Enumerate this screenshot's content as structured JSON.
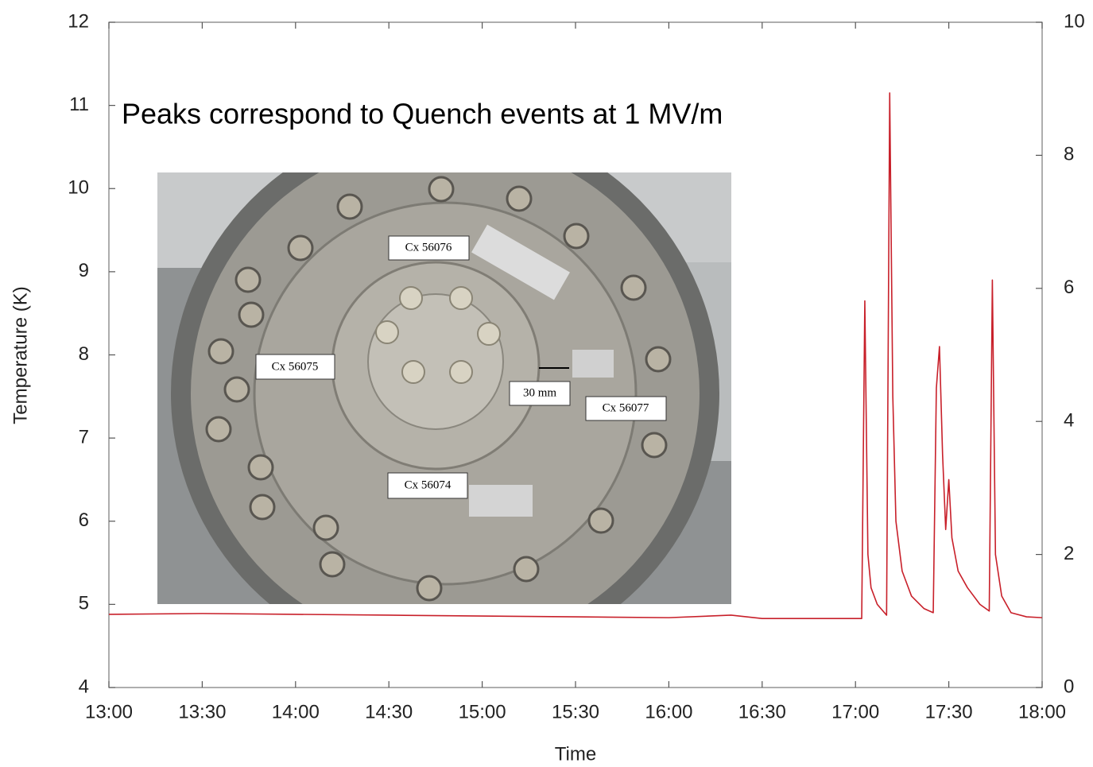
{
  "chart_data": {
    "type": "line",
    "title": "Peaks correspond to Quench events at 1 MV/m",
    "x_label": "Time",
    "y_label": "Temperature (K)",
    "annotations": [
      "Cx 56076",
      "Cx 56075",
      "30 mm",
      "Cx 56077",
      "Cx 56074"
    ],
    "x": [
      "13:00",
      "13:30",
      "14:00",
      "14:30",
      "15:00",
      "15:30",
      "16:00",
      "16:20",
      "16:30",
      "17:02",
      "17:03",
      "17:04",
      "17:05",
      "17:07",
      "17:10",
      "17:11",
      "17:12",
      "17:13",
      "17:15",
      "17:18",
      "17:22",
      "17:25",
      "17:26",
      "17:27",
      "17:28",
      "17:29",
      "17:30",
      "17:31",
      "17:33",
      "17:36",
      "17:40",
      "17:43",
      "17:44",
      "17:45",
      "17:47",
      "17:50",
      "17:55",
      "18:00"
    ],
    "series": [
      {
        "color": "#c8202a",
        "values": [
          4.88,
          4.89,
          4.88,
          4.87,
          4.86,
          4.85,
          4.84,
          4.87,
          4.83,
          4.83,
          8.65,
          5.6,
          5.2,
          5.0,
          4.87,
          11.15,
          7.5,
          6.0,
          5.4,
          5.1,
          4.95,
          4.9,
          7.6,
          8.1,
          6.8,
          5.9,
          6.5,
          5.8,
          5.4,
          5.2,
          5.0,
          4.92,
          8.9,
          5.6,
          5.1,
          4.9,
          4.85,
          4.84
        ]
      }
    ],
    "xlim": [
      "13:00",
      "18:00"
    ],
    "xticks": [
      "13:00",
      "13:30",
      "14:00",
      "14:30",
      "15:00",
      "15:30",
      "16:00",
      "16:30",
      "17:00",
      "17:30",
      "18:00"
    ],
    "ylim": [
      4,
      12
    ],
    "yticks": [
      4,
      5,
      6,
      7,
      8,
      9,
      10,
      11,
      12
    ],
    "y2lim": [
      0,
      10
    ],
    "y2ticks": [
      0,
      2,
      4,
      6,
      8,
      10
    ]
  }
}
